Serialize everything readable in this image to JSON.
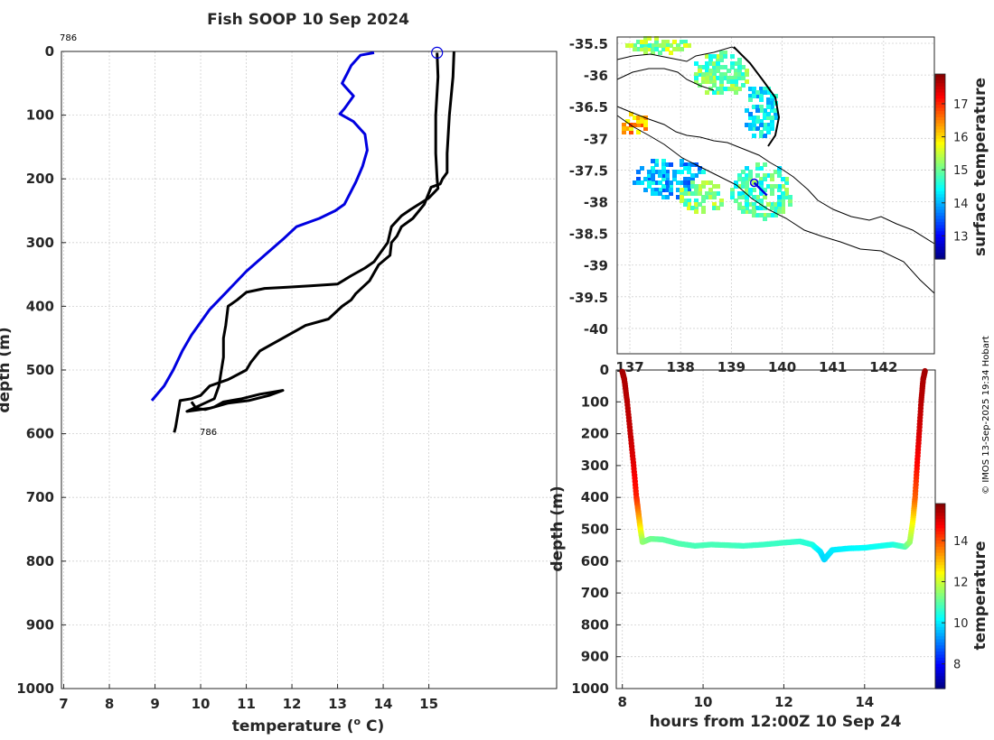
{
  "title": "Fish SOOP 10 Sep 2024",
  "credit": "© IMOS 13-Sep-2025 19:34 Hobart",
  "profile_id": "786",
  "colors": {
    "series1": "#0000e0",
    "series2": "#000000"
  },
  "chart_data": [
    {
      "type": "line",
      "name": "temperature-profile",
      "xlabel": "temperature (",
      "xlabel_sup": "o",
      "xlabel_end": " C)",
      "ylabel": "depth (m)",
      "xlim": [
        6.95,
        17.8
      ],
      "ylim": [
        1000,
        0
      ],
      "xticks": [
        "7",
        "8",
        "9",
        "10",
        "11",
        "12",
        "13",
        "14",
        "15"
      ],
      "yticks": [
        "0",
        "100",
        "200",
        "300",
        "400",
        "500",
        "600",
        "700",
        "800",
        "900",
        "1000"
      ],
      "start_marker": {
        "x": 15.18,
        "y": 2
      },
      "series": [
        {
          "name": "blue profile",
          "color": "#0000e0",
          "points": [
            [
              13.8,
              2
            ],
            [
              13.5,
              6
            ],
            [
              13.3,
              22
            ],
            [
              13.2,
              36
            ],
            [
              13.1,
              50
            ],
            [
              13.35,
              70
            ],
            [
              13.15,
              90
            ],
            [
              13.05,
              98
            ],
            [
              13.35,
              110
            ],
            [
              13.6,
              130
            ],
            [
              13.65,
              155
            ],
            [
              13.55,
              180
            ],
            [
              13.4,
              205
            ],
            [
              13.15,
              240
            ],
            [
              12.95,
              250
            ],
            [
              12.6,
              262
            ],
            [
              12.1,
              275
            ],
            [
              11.8,
              295
            ],
            [
              11.4,
              320
            ],
            [
              11.0,
              345
            ],
            [
              10.6,
              375
            ],
            [
              10.2,
              405
            ],
            [
              9.8,
              445
            ],
            [
              9.6,
              470
            ],
            [
              9.4,
              500
            ],
            [
              9.2,
              525
            ],
            [
              8.93,
              548
            ]
          ]
        },
        {
          "name": "black profile A",
          "color": "#000000",
          "points": [
            [
              15.55,
              0
            ],
            [
              15.53,
              40
            ],
            [
              15.45,
              100
            ],
            [
              15.4,
              160
            ],
            [
              15.4,
              190
            ],
            [
              15.3,
              200
            ],
            [
              15.25,
              208
            ],
            [
              15.05,
              213
            ],
            [
              14.9,
              240
            ],
            [
              14.65,
              262
            ],
            [
              14.4,
              275
            ],
            [
              14.3,
              290
            ],
            [
              14.18,
              300
            ],
            [
              14.15,
              320
            ],
            [
              13.9,
              335
            ],
            [
              13.7,
              360
            ],
            [
              13.4,
              380
            ],
            [
              13.3,
              390
            ],
            [
              13.1,
              400
            ],
            [
              12.8,
              420
            ],
            [
              12.3,
              430
            ],
            [
              11.8,
              450
            ],
            [
              11.6,
              458
            ],
            [
              11.3,
              470
            ],
            [
              11.1,
              488
            ],
            [
              11.0,
              500
            ],
            [
              10.6,
              515
            ],
            [
              10.2,
              525
            ],
            [
              10.0,
              540
            ],
            [
              9.8,
              545
            ],
            [
              9.55,
              548
            ],
            [
              9.45,
              590
            ],
            [
              9.42,
              598
            ]
          ]
        },
        {
          "name": "black profile B",
          "color": "#000000",
          "points": [
            [
              15.18,
              2
            ],
            [
              15.2,
              40
            ],
            [
              15.15,
              100
            ],
            [
              15.15,
              160
            ],
            [
              15.18,
              200
            ],
            [
              15.2,
              215
            ],
            [
              15.0,
              230
            ],
            [
              14.6,
              248
            ],
            [
              14.4,
              258
            ],
            [
              14.18,
              275
            ],
            [
              14.1,
              300
            ],
            [
              13.9,
              320
            ],
            [
              13.8,
              330
            ],
            [
              13.6,
              340
            ],
            [
              13.3,
              352
            ],
            [
              13.0,
              365
            ],
            [
              12.4,
              368
            ],
            [
              11.9,
              370
            ],
            [
              11.4,
              372
            ],
            [
              11.0,
              378
            ],
            [
              10.8,
              390
            ],
            [
              10.6,
              400
            ],
            [
              10.55,
              430
            ],
            [
              10.5,
              450
            ],
            [
              10.5,
              480
            ],
            [
              10.4,
              525
            ],
            [
              10.3,
              545
            ],
            [
              10.0,
              555
            ],
            [
              9.7,
              565
            ],
            [
              10.2,
              560
            ],
            [
              10.6,
              552
            ],
            [
              11.05,
              548
            ],
            [
              11.5,
              540
            ],
            [
              11.8,
              532
            ],
            [
              11.3,
              538
            ],
            [
              10.9,
              545
            ],
            [
              10.5,
              550
            ],
            [
              10.3,
              558
            ],
            [
              10.1,
              562
            ],
            [
              9.9,
              560
            ],
            [
              9.8,
              550
            ]
          ]
        }
      ]
    },
    {
      "type": "heatmap",
      "name": "surface-temperature-map",
      "colorbar_label": "surface temperature",
      "xlim": [
        136.75,
        143.0
      ],
      "ylim": [
        -40.4,
        -35.4
      ],
      "xticks": [
        "137",
        "138",
        "139",
        "140",
        "141",
        "142"
      ],
      "yticks": [
        "-35.5",
        "-36",
        "-36.5",
        "-37",
        "-37.5",
        "-38",
        "-38.5",
        "-39",
        "-39.5",
        "-40"
      ],
      "colorbar_range": [
        12.3,
        17.9
      ],
      "colorbar_ticks": [
        "13",
        "14",
        "15",
        "16",
        "17"
      ],
      "ship_marker": {
        "lon": 139.45,
        "lat": -37.7
      },
      "track": [
        [
          139.45,
          -37.7
        ],
        [
          139.7,
          -37.9
        ]
      ]
    },
    {
      "type": "scatter",
      "name": "depth-time-section",
      "xlabel": "hours from 12:00Z 10 Sep 24",
      "ylabel": "depth (m)",
      "colorbar_label": "temperature",
      "xlim": [
        7.85,
        15.75
      ],
      "ylim": [
        1000,
        0
      ],
      "xticks": [
        "8",
        "10",
        "12",
        "14"
      ],
      "yticks": [
        "0",
        "100",
        "200",
        "300",
        "400",
        "500",
        "600",
        "700",
        "800",
        "900",
        "1000"
      ],
      "colorbar_range": [
        6.8,
        15.8
      ],
      "colorbar_ticks": [
        "8",
        "10",
        "12",
        "14"
      ],
      "points": [
        [
          8.0,
          5,
          15.5
        ],
        [
          8.05,
          30,
          15.4
        ],
        [
          8.12,
          100,
          15.3
        ],
        [
          8.2,
          200,
          15.2
        ],
        [
          8.28,
          300,
          14.9
        ],
        [
          8.35,
          400,
          14.4
        ],
        [
          8.4,
          450,
          13.5
        ],
        [
          8.45,
          500,
          12.5
        ],
        [
          8.5,
          540,
          11.5
        ],
        [
          8.7,
          530,
          11.2
        ],
        [
          9.0,
          532,
          11.0
        ],
        [
          9.4,
          545,
          10.9
        ],
        [
          9.8,
          552,
          10.8
        ],
        [
          10.2,
          548,
          10.8
        ],
        [
          10.6,
          550,
          10.8
        ],
        [
          11.0,
          552,
          10.7
        ],
        [
          11.5,
          548,
          10.7
        ],
        [
          12.0,
          542,
          10.7
        ],
        [
          12.4,
          538,
          10.6
        ],
        [
          12.7,
          548,
          10.5
        ],
        [
          12.9,
          570,
          10.0
        ],
        [
          13.0,
          595,
          9.8
        ],
        [
          13.1,
          580,
          9.9
        ],
        [
          13.2,
          565,
          10.0
        ],
        [
          13.6,
          560,
          10.1
        ],
        [
          14.0,
          558,
          10.2
        ],
        [
          14.4,
          552,
          10.3
        ],
        [
          14.7,
          548,
          10.4
        ],
        [
          15.0,
          555,
          10.8
        ],
        [
          15.12,
          540,
          11.5
        ],
        [
          15.2,
          470,
          12.5
        ],
        [
          15.25,
          400,
          13.8
        ],
        [
          15.3,
          300,
          14.6
        ],
        [
          15.35,
          200,
          15.0
        ],
        [
          15.4,
          100,
          15.3
        ],
        [
          15.45,
          30,
          15.4
        ],
        [
          15.5,
          0,
          15.5
        ]
      ]
    }
  ]
}
